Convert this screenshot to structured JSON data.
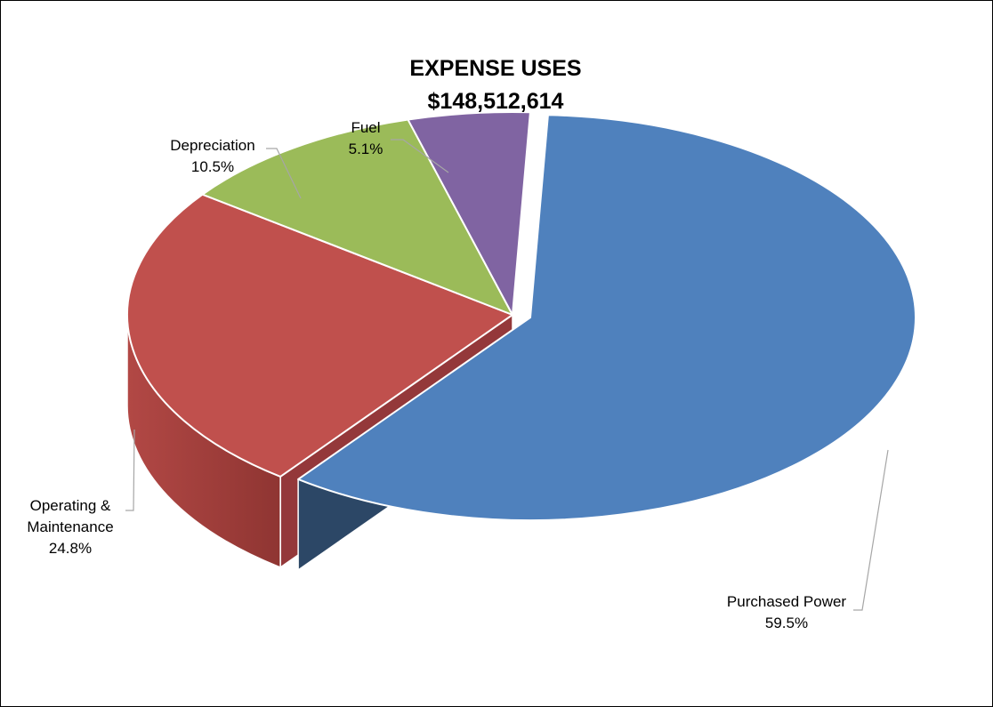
{
  "chart_data": {
    "type": "pie",
    "title": "EXPENSE USES",
    "subtitle": "$148,512,614",
    "slices": [
      {
        "name": "Purchased Power",
        "label_lines": [
          "Purchased Power",
          "59.5%"
        ],
        "value": 59.5,
        "percent_label": "59.5%",
        "color": "#4f81bd",
        "side_color": "#2c4766",
        "exploded": true
      },
      {
        "name": "Operating & Maintenance",
        "label_lines": [
          "Operating &",
          "Maintenance",
          "24.8%"
        ],
        "value": 24.8,
        "percent_label": "24.8%",
        "color": "#c0504d",
        "side_color": "#94383a",
        "exploded": false
      },
      {
        "name": "Depreciation",
        "label_lines": [
          "Depreciation",
          "10.5%"
        ],
        "value": 10.5,
        "percent_label": "10.5%",
        "color": "#9bbb59",
        "side_color": "#76923c",
        "exploded": false
      },
      {
        "name": "Fuel",
        "label_lines": [
          "Fuel",
          "5.1%"
        ],
        "value": 5.1,
        "percent_label": "5.1%",
        "color": "#8064a2",
        "side_color": "#5f4a7a",
        "exploded": false
      }
    ],
    "legend": "none",
    "style": "3d-exploded"
  }
}
